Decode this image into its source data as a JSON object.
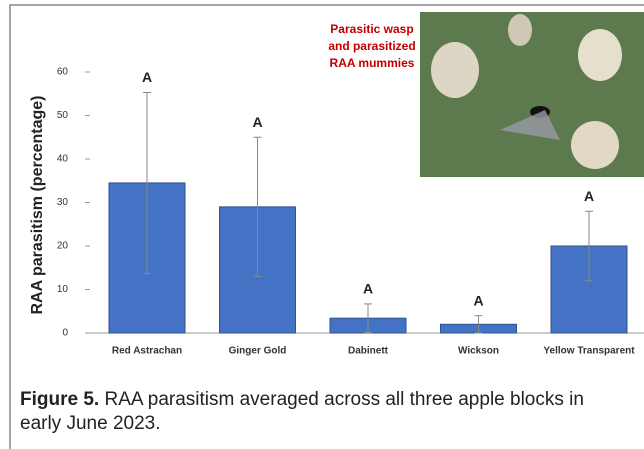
{
  "chart_data": {
    "type": "bar",
    "y_label": "RAA parasitism  (percentage)",
    "categories": [
      "Red Astrachan",
      "Ginger Gold",
      "Dabinett",
      "Wickson",
      "Yellow Transparent"
    ],
    "values": [
      34.5,
      29,
      3.4,
      2,
      20
    ],
    "errors": [
      20.8,
      16,
      3.3,
      2,
      8
    ],
    "letters": [
      "A",
      "A",
      "A",
      "A",
      "A"
    ],
    "color": "#4472c4",
    "ylim": [
      0,
      60
    ],
    "yticks": [
      0,
      10,
      20,
      30,
      40,
      50,
      60
    ],
    "inset_caption": [
      "Parasitic wasp",
      "and parasitized",
      "RAA mummies"
    ]
  },
  "caption": {
    "label": "Figure 5.",
    "text": " RAA parasitism averaged across all three apple blocks in early June 2023."
  }
}
